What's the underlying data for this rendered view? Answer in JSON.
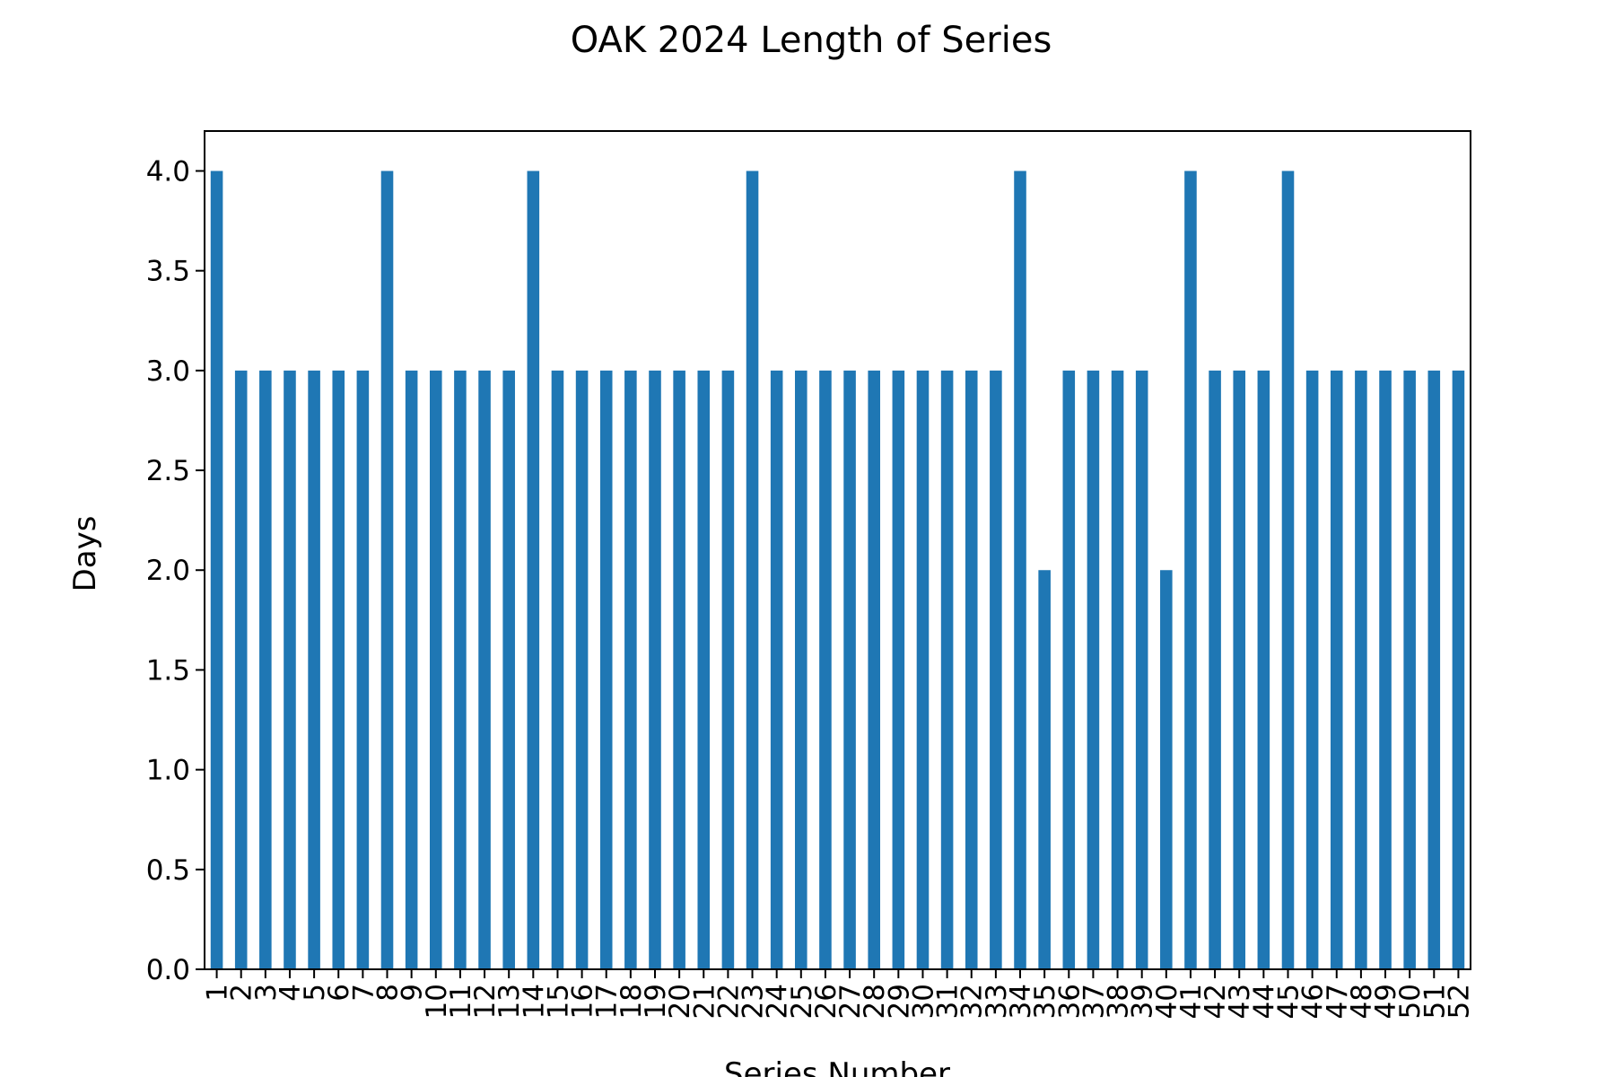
{
  "chart_data": {
    "type": "bar",
    "title": "OAK 2024 Length of Series",
    "xlabel": "Series Number",
    "ylabel": "Days",
    "categories": [
      "1",
      "2",
      "3",
      "4",
      "5",
      "6",
      "7",
      "8",
      "9",
      "10",
      "11",
      "12",
      "13",
      "14",
      "15",
      "16",
      "17",
      "18",
      "19",
      "20",
      "21",
      "22",
      "23",
      "24",
      "25",
      "26",
      "27",
      "28",
      "29",
      "30",
      "31",
      "32",
      "33",
      "34",
      "35",
      "36",
      "37",
      "38",
      "39",
      "40",
      "41",
      "42",
      "43",
      "44",
      "45",
      "46",
      "47",
      "48",
      "49",
      "50",
      "51",
      "52"
    ],
    "values": [
      4,
      3,
      3,
      3,
      3,
      3,
      3,
      4,
      3,
      3,
      3,
      3,
      3,
      4,
      3,
      3,
      3,
      3,
      3,
      3,
      3,
      3,
      4,
      3,
      3,
      3,
      3,
      3,
      3,
      3,
      3,
      3,
      3,
      4,
      2,
      3,
      3,
      3,
      3,
      2,
      4,
      3,
      3,
      3,
      4,
      3,
      3,
      3,
      3,
      3,
      3,
      3
    ],
    "ylim": [
      0,
      4.2
    ],
    "yticks": [
      0.0,
      0.5,
      1.0,
      1.5,
      2.0,
      2.5,
      3.0,
      3.5,
      4.0
    ],
    "ytick_labels": [
      "0.0",
      "0.5",
      "1.0",
      "1.5",
      "2.0",
      "2.5",
      "3.0",
      "3.5",
      "4.0"
    ],
    "grid": false,
    "bar_color": "#1f77b4"
  }
}
